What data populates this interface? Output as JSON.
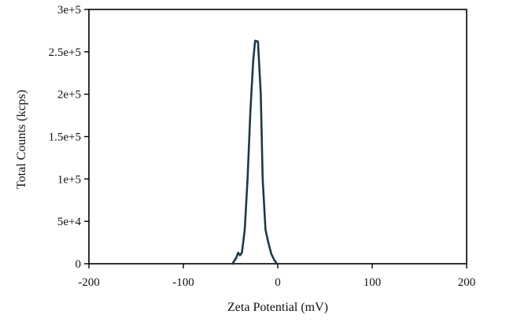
{
  "chart_data": {
    "type": "line",
    "title": "",
    "xlabel": "Zeta Potential (mV)",
    "ylabel": "Total Counts (kcps)",
    "xlim": [
      -200,
      200
    ],
    "ylim": [
      0,
      300000
    ],
    "xticks": [
      -200,
      -100,
      0,
      100,
      200
    ],
    "xtick_labels": [
      "-200",
      "-100",
      "0",
      "100",
      "200"
    ],
    "yticks": [
      0,
      50000,
      100000,
      150000,
      200000,
      250000,
      300000
    ],
    "ytick_labels": [
      "0",
      "5e+4",
      "1e+5",
      "1.5e+5",
      "2e+5",
      "2.5e+5",
      "3e+5"
    ],
    "grid": false,
    "legend": "none",
    "series": [
      {
        "color": "#1e3a44",
        "x": [
          -48,
          -44,
          -42,
          -40,
          -38,
          -35,
          -32,
          -29,
          -26,
          -24,
          -21,
          -18,
          -16,
          -13,
          -10,
          -7,
          -4,
          -1
        ],
        "y": [
          0,
          7000,
          13000,
          10000,
          13000,
          40000,
          100000,
          180000,
          240000,
          263000,
          262000,
          200000,
          100000,
          40000,
          25000,
          12000,
          5000,
          0
        ]
      }
    ]
  }
}
